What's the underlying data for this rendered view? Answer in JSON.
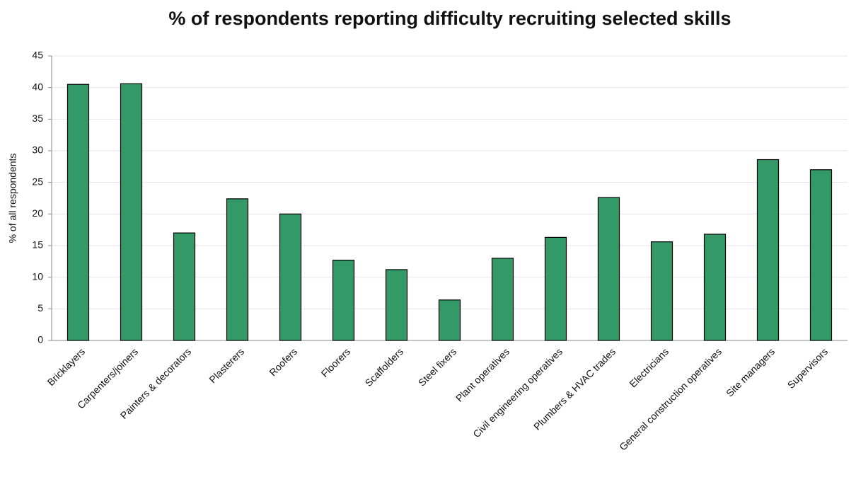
{
  "chart_data": {
    "type": "bar",
    "title": "% of respondents reporting difficulty recruiting selected skills",
    "y_label": "% of all respondents",
    "categories": [
      "Bricklayers",
      "Carpenters/joiners",
      "Painters & decorators",
      "Plasterers",
      "Roofers",
      "Floorers",
      "Scaffolders",
      "Steel fixers",
      "Plant operatives",
      "Civil engineering operatives",
      "Plumbers & HVAC trades",
      "Electricians",
      "General construction operatives",
      "Site managers",
      "Supervisors"
    ],
    "values": [
      40.5,
      40.6,
      17.0,
      22.4,
      20.0,
      12.7,
      11.2,
      6.4,
      13.0,
      16.3,
      22.6,
      15.6,
      16.8,
      28.6,
      27.0
    ],
    "color": "#339966",
    "ylim": [
      0,
      45
    ],
    "yticks": [
      0,
      5,
      10,
      15,
      20,
      25,
      30,
      35,
      40,
      45
    ],
    "grid": true
  }
}
